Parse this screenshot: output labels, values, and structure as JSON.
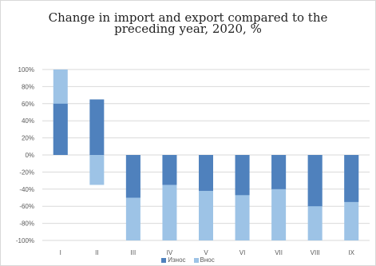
{
  "chart_data": {
    "type": "bar",
    "title": "Change in import and export compared to the preceding year, 2020, %",
    "title_lines": [
      "Change in import and export compared to the",
      "preceding year, 2020, %"
    ],
    "categories": [
      "I",
      "II",
      "III",
      "IV",
      "V",
      "VI",
      "VII",
      "VIII",
      "IX"
    ],
    "series": [
      {
        "name": "Износ",
        "values": [
          60,
          65,
          -50,
          -35,
          -42,
          -47,
          -40,
          -60,
          -55
        ],
        "color": "#4f81bd"
      },
      {
        "name": "Внос",
        "values": [
          100,
          -35,
          -100,
          -100,
          -100,
          -100,
          -100,
          -100,
          -100
        ],
        "color": "#9dc3e6"
      }
    ],
    "ylim": [
      -100,
      100
    ],
    "yticks": [
      100,
      80,
      60,
      40,
      20,
      0,
      -20,
      -40,
      -60,
      -80,
      -100
    ],
    "ytick_labels": [
      "100%",
      "80%",
      "60%",
      "40%",
      "20%",
      "0%",
      "-20%",
      "-40%",
      "-60%",
      "-80%",
      "-100%"
    ],
    "xlabel": "",
    "ylabel": "",
    "grid": true,
    "legend_position": "bottom"
  }
}
